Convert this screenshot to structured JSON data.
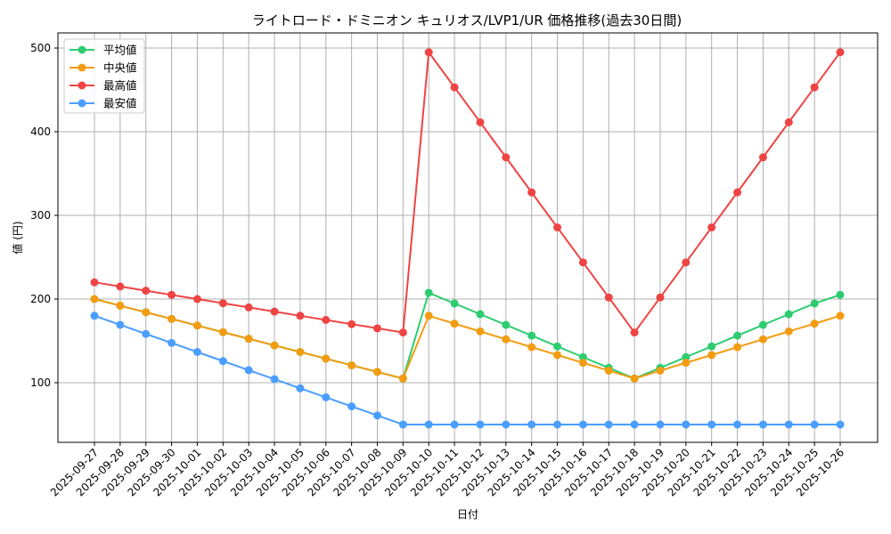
{
  "chart_data": {
    "type": "line",
    "title": "ライトロード・ドミニオン キュリオス/LVP1/UR 価格推移(過去30日間)",
    "xlabel": "日付",
    "ylabel": "値 (円)",
    "ylim": [
      29,
      517
    ],
    "yticks": [
      100,
      200,
      300,
      400,
      500
    ],
    "grid": true,
    "legend_position": "upper left",
    "x": [
      "2025-09-27",
      "2025-09-28",
      "2025-09-29",
      "2025-09-30",
      "2025-10-01",
      "2025-10-02",
      "2025-10-03",
      "2025-10-04",
      "2025-10-05",
      "2025-10-06",
      "2025-10-07",
      "2025-10-08",
      "2025-10-09",
      "2025-10-10",
      "2025-10-11",
      "2025-10-12",
      "2025-10-13",
      "2025-10-14",
      "2025-10-15",
      "2025-10-16",
      "2025-10-17",
      "2025-10-18",
      "2025-10-19",
      "2025-10-20",
      "2025-10-21",
      "2025-10-22",
      "2025-10-23",
      "2025-10-24",
      "2025-10-25",
      "2025-10-26"
    ],
    "series": [
      {
        "name": "平均値",
        "color": "#2ecc71",
        "values": [
          200,
          192.1,
          184.2,
          176.3,
          168.3,
          160.4,
          152.5,
          144.6,
          136.7,
          128.8,
          120.8,
          112.9,
          105,
          207.5,
          194.7,
          181.9,
          169.1,
          156.3,
          143.4,
          130.6,
          117.8,
          105,
          117.8,
          130.6,
          143.4,
          156.3,
          169.1,
          181.9,
          194.7,
          205
        ]
      },
      {
        "name": "中央値",
        "color": "#f39c12",
        "values": [
          200,
          192.1,
          184.2,
          176.3,
          168.3,
          160.4,
          152.5,
          144.6,
          136.7,
          128.8,
          120.8,
          112.9,
          105,
          180,
          170.6,
          161.3,
          151.9,
          142.5,
          133.1,
          123.8,
          114.4,
          105,
          114.4,
          123.8,
          133.1,
          142.5,
          151.9,
          161.3,
          170.6,
          180
        ]
      },
      {
        "name": "最高値",
        "color": "#ef4444",
        "values": [
          220,
          215,
          210,
          205,
          200,
          195,
          190,
          185,
          180,
          175,
          170,
          165,
          160,
          495,
          453.1,
          411.3,
          369.4,
          327.5,
          285.6,
          243.8,
          201.9,
          160,
          201.9,
          243.8,
          285.6,
          327.5,
          369.4,
          411.3,
          453.1,
          495
        ]
      },
      {
        "name": "最安値",
        "color": "#4a9eff",
        "values": [
          180,
          169.2,
          158.3,
          147.5,
          136.7,
          125.8,
          115,
          104.2,
          93.3,
          82.5,
          71.7,
          60.8,
          50,
          50,
          50,
          50,
          50,
          50,
          50,
          50,
          50,
          50,
          50,
          50,
          50,
          50,
          50,
          50,
          50,
          50
        ]
      }
    ]
  }
}
